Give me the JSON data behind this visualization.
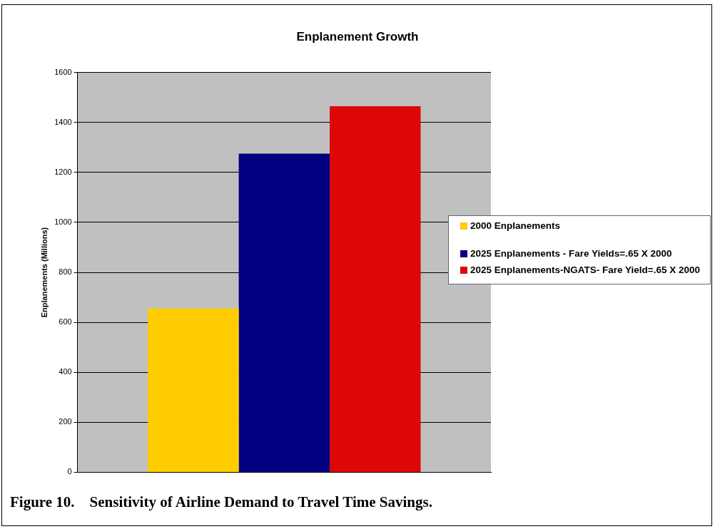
{
  "chart_data": {
    "type": "bar",
    "title": "Enplanement Growth",
    "ylabel": "Enplanements (Millions)",
    "categories": [
      null
    ],
    "series": [
      {
        "name": "2000 Enplanements",
        "color": "#ffcc00",
        "values": [
          655
        ]
      },
      {
        "name": "2025 Enplanements - Fare Yields=.65 X 2000",
        "color": "#000080",
        "values": [
          1275
        ]
      },
      {
        "name": "2025 Enplanements-NGATS- Fare Yield=.65 X 2000",
        "color": "#dd0806",
        "values": [
          1465
        ]
      }
    ],
    "ylim": [
      0,
      1600
    ],
    "yticks": [
      0,
      200,
      400,
      600,
      800,
      1000,
      1200,
      1400,
      1600
    ],
    "grid": "y",
    "legend": "right",
    "tick_labels": "y",
    "annotations": [
      "Figure 10.    Sensitivity of Airline Demand to Travel Time Savings."
    ]
  }
}
